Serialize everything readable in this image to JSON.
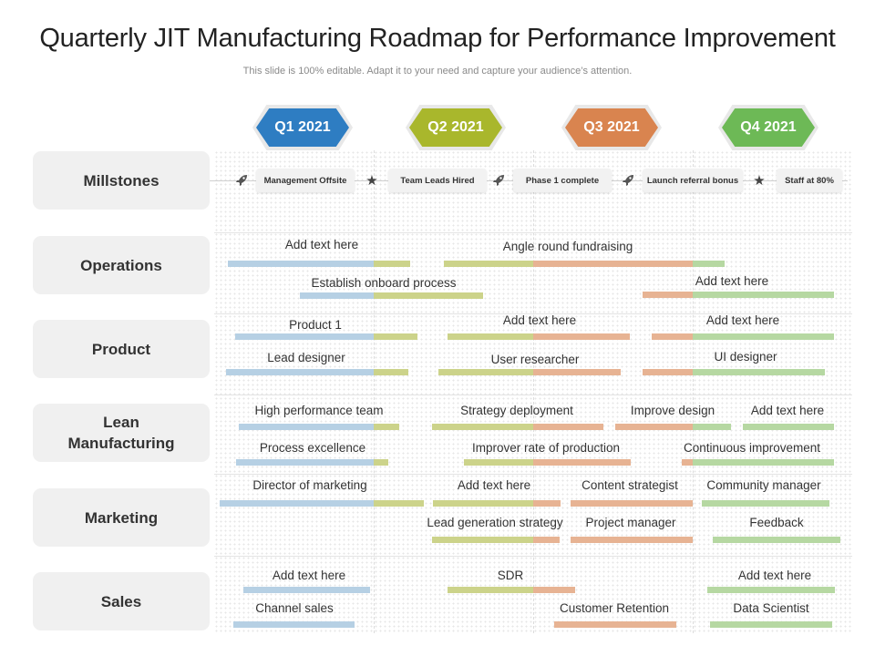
{
  "title": "Quarterly JIT Manufacturing Roadmap for Performance Improvement",
  "subtitle": "This slide is 100% editable. Adapt it to your need and capture your audience’s attention.",
  "colors": {
    "q1": "#2e7dc2",
    "q2": "#a9b72c",
    "q3": "#d9844f",
    "q4": "#6db956",
    "bar_blue": "#b6d0e4",
    "bar_olive": "#ccd38a",
    "bar_orange": "#e7b393",
    "bar_green": "#b6d8a2"
  },
  "quarters": [
    "Q1 2021",
    "Q2 2021",
    "Q3 2021",
    "Q4 2021"
  ],
  "rows": [
    "Millstones",
    "Operations",
    "Product",
    "Lean Manufacturing",
    "Marketing",
    "Sales"
  ],
  "milestones": [
    {
      "icon": "rocket-icon",
      "label": "Management Offsite"
    },
    {
      "icon": "star-icon",
      "label": "Team Leads Hired"
    },
    {
      "icon": "rocket-icon",
      "label": "Phase 1 complete"
    },
    {
      "icon": "rocket-icon",
      "label": "Launch referral bonus"
    },
    {
      "icon": "star-icon",
      "label": "Staff at 80%"
    }
  ],
  "tasks": {
    "operations": [
      "Add text here",
      "Angle round fundraising",
      "Establish onboard process",
      "Add text here"
    ],
    "product": [
      "Product 1",
      "Add text here",
      "Add text here",
      "Lead designer",
      "User researcher",
      "UI designer"
    ],
    "lean": [
      "High performance team",
      "Strategy deployment",
      "Improve design",
      "Add text here",
      "Process excellence",
      "Improver rate of production",
      "Continuous improvement"
    ],
    "marketing": [
      "Director of marketing",
      "Add text here",
      "Content strategist",
      "Community manager",
      "Lead generation strategy",
      "Project manager",
      "Feedback"
    ],
    "sales": [
      "Add text here",
      "SDR",
      "Add text here",
      "Channel sales",
      "Customer Retention",
      "Data Scientist"
    ]
  }
}
